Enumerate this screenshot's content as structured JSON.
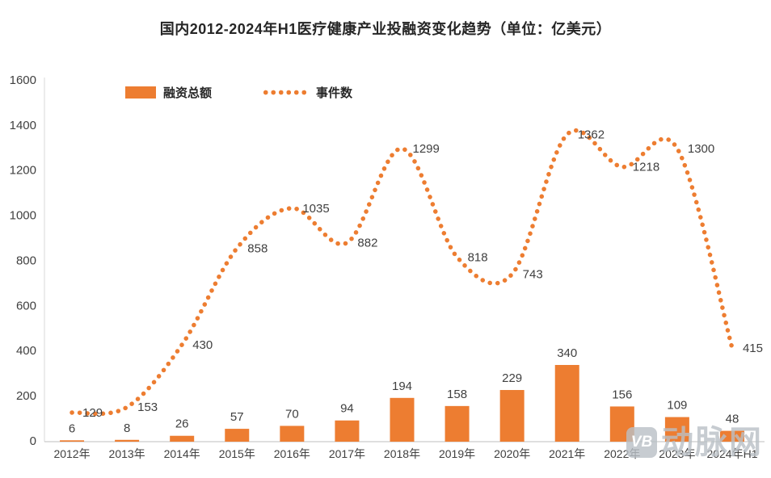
{
  "chart_data": {
    "type": "bar",
    "title": "国内2012-2024年H1医疗健康产业投融资变化趋势（单位：亿美元）",
    "categories": [
      "2012年",
      "2013年",
      "2014年",
      "2015年",
      "2016年",
      "2017年",
      "2018年",
      "2019年",
      "2020年",
      "2021年",
      "2022年",
      "2023年",
      "2024年H1"
    ],
    "series": [
      {
        "name": "融资总额",
        "type": "bar",
        "values": [
          6,
          8,
          26,
          57,
          70,
          94,
          194,
          158,
          229,
          340,
          156,
          109,
          48
        ]
      },
      {
        "name": "事件数",
        "type": "line",
        "values": [
          129,
          153,
          430,
          858,
          1035,
          882,
          1299,
          818,
          743,
          1362,
          1218,
          1300,
          415
        ]
      }
    ],
    "ylim": [
      0,
      1600
    ],
    "ytick_step": 200,
    "yticks": [
      0,
      200,
      400,
      600,
      800,
      1000,
      1200,
      1400,
      1600
    ],
    "grid": false,
    "legend_position": "top-left",
    "colors": {
      "accent": "#ED7D31",
      "label_text": "#404040",
      "axis_line": "#D9D9D9",
      "axis_bottom": "#BFBFBF"
    }
  },
  "watermark": {
    "logo_text": "VB",
    "brand_text": "动脉网"
  }
}
